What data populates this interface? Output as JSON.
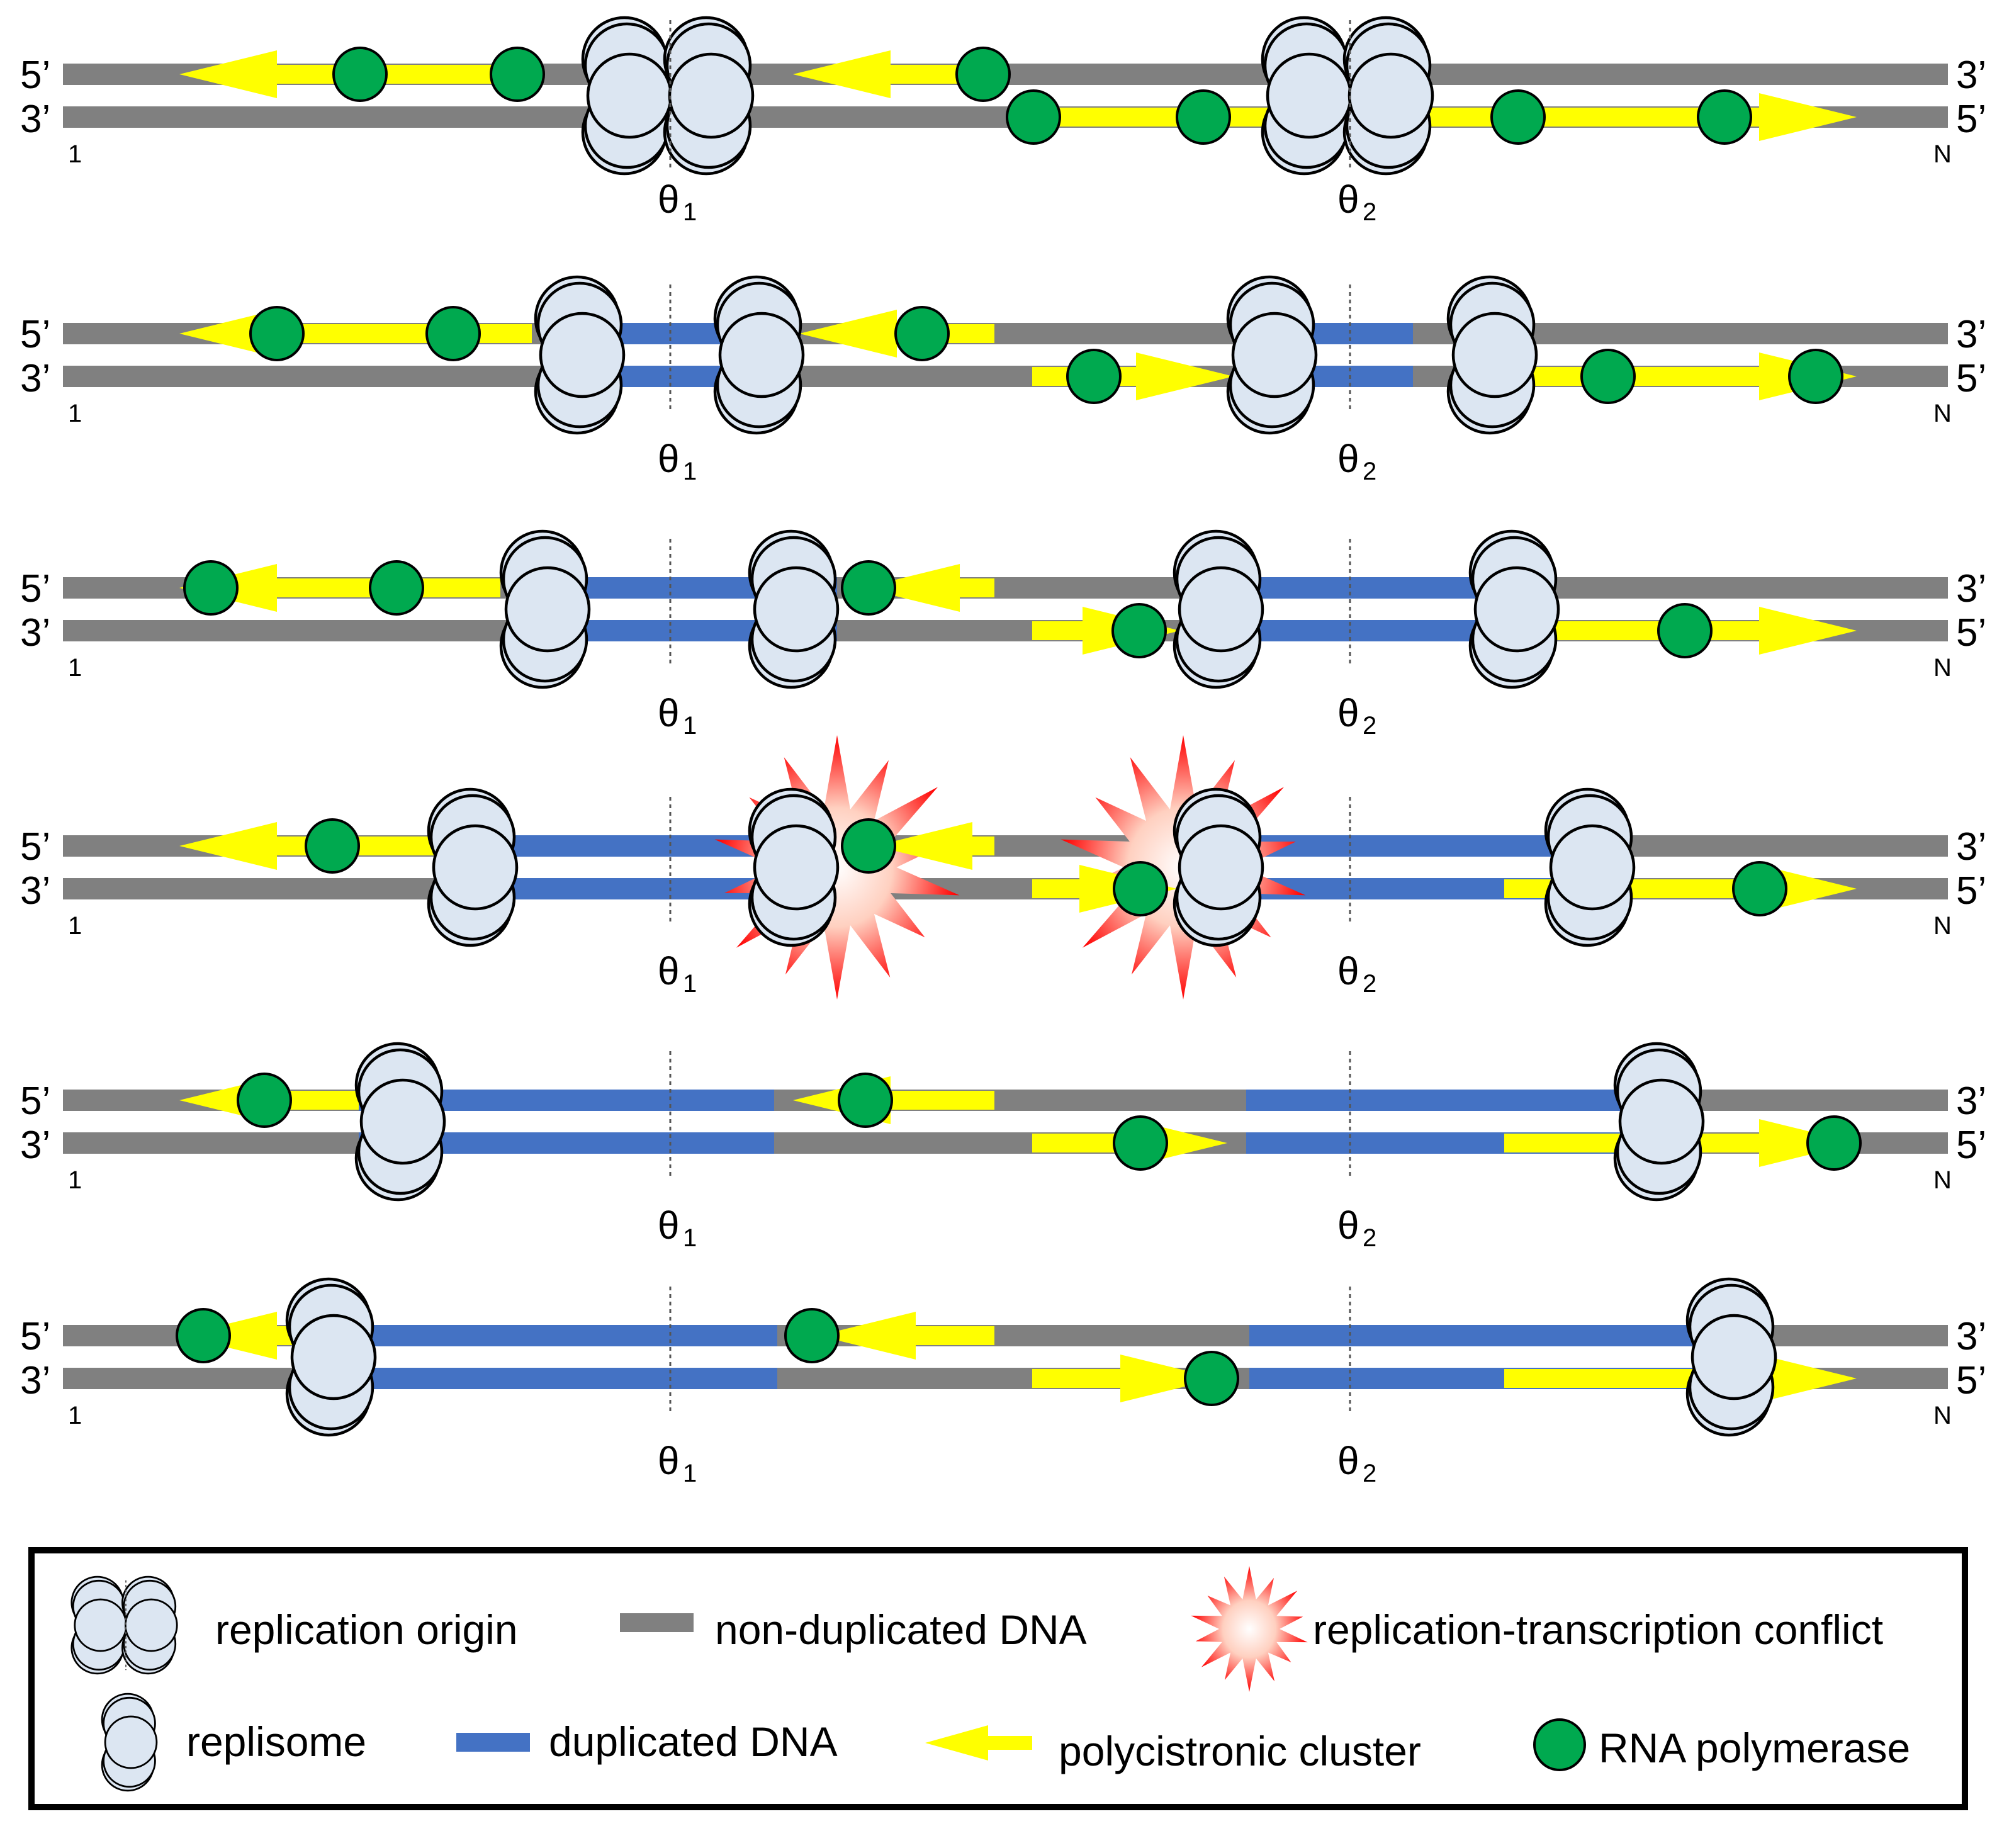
{
  "labels": {
    "top_left": "5’",
    "bottom_left": "3’",
    "top_right": "3’",
    "bottom_right": "5’",
    "start": "1",
    "end": "N",
    "origin1": "θ",
    "origin1_sub": "1",
    "origin2": "θ",
    "origin2_sub": "2"
  },
  "colors": {
    "non_duplicated": "#808080",
    "duplicated": "#4472c4",
    "cluster": "#ffff00",
    "rna_polymerase": "#00a94f",
    "replisome": "#dce6f2",
    "conflict": "#ff0000"
  },
  "legend": {
    "replication_origin": "replication origin",
    "non_duplicated_dna": "non-duplicated DNA",
    "conflict": "replication-transcription conflict",
    "replisome": "replisome",
    "duplicated_dna": "duplicated DNA",
    "polycistronic_cluster": "polycistronic cluster",
    "rna_polymerase": "RNA polymerase"
  }
}
